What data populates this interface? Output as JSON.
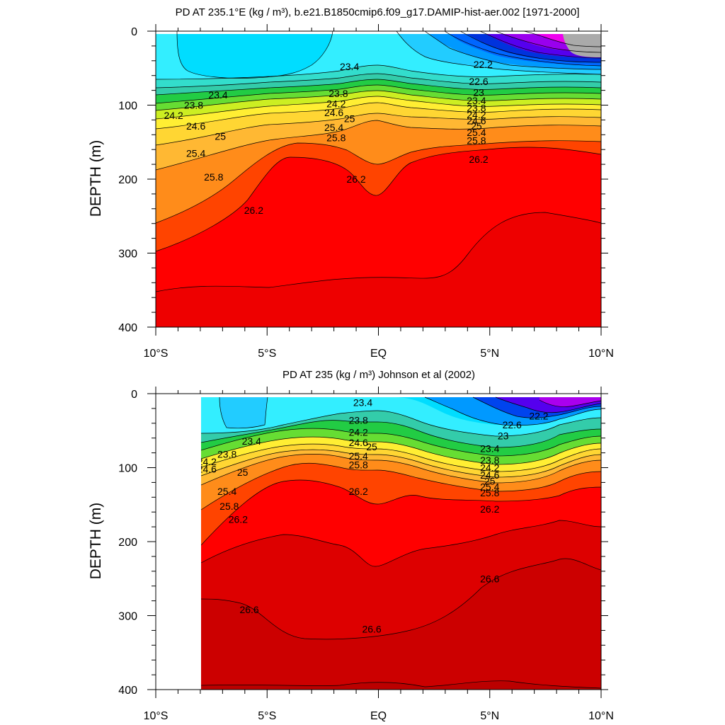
{
  "chart_data": [
    {
      "type": "contour",
      "title": "PD AT 235.1°E (kg / m³), b.e21.B1850cmip6.f09_g17.DAMIP-hist-aer.002 [1971-2000]",
      "ylabel": "DEPTH (m)",
      "xlabel": "",
      "x_ticks": [
        "10°S",
        "5°S",
        "EQ",
        "5°N",
        "10°N"
      ],
      "x_range": [
        -10,
        10
      ],
      "ylim": [
        0,
        400
      ],
      "y_ticks": [
        0,
        100,
        200,
        300,
        400
      ],
      "y_reversed": true,
      "grid": false,
      "contour_interval": 0.2,
      "isopycnals": [
        {
          "level": 23.4,
          "x": [
            -10,
            -6,
            -4,
            -2,
            -1,
            0,
            1,
            3,
            5
          ],
          "depth": [
            55,
            60,
            75,
            60,
            25,
            20,
            30,
            60,
            70
          ]
        },
        {
          "level": 23.8,
          "x": [
            -10,
            -6,
            -3,
            -1,
            0,
            2,
            5,
            8,
            10
          ],
          "depth": [
            84,
            90,
            95,
            95,
            80,
            90,
            100,
            92,
            90
          ]
        },
        {
          "level": 24.2,
          "x": [
            -10,
            -6,
            -3,
            -1,
            0,
            2,
            5,
            8,
            10
          ],
          "depth": [
            98,
            103,
            108,
            105,
            90,
            100,
            107,
            100,
            98
          ]
        },
        {
          "level": 24.6,
          "x": [
            -10,
            -6,
            -3,
            -1,
            0,
            2,
            5,
            8,
            10
          ],
          "depth": [
            110,
            116,
            118,
            114,
            98,
            108,
            113,
            108,
            106
          ]
        },
        {
          "level": 25.0,
          "x": [
            -10,
            -6,
            -3,
            -1,
            0,
            2,
            5,
            8,
            10
          ],
          "depth": [
            125,
            132,
            130,
            122,
            110,
            120,
            122,
            118,
            115
          ]
        },
        {
          "level": 25.4,
          "x": [
            -10,
            -6,
            -3,
            -1,
            0,
            2,
            5,
            8,
            10
          ],
          "depth": [
            155,
            158,
            150,
            140,
            125,
            135,
            137,
            132,
            128
          ]
        },
        {
          "level": 25.8,
          "x": [
            -10,
            -6,
            -3,
            -1,
            0,
            2,
            5,
            8,
            10
          ],
          "depth": [
            200,
            190,
            172,
            150,
            145,
            150,
            150,
            145,
            140
          ]
        },
        {
          "level": 26.2,
          "x": [
            -10,
            -6,
            -4,
            -2,
            -1,
            0,
            2,
            5,
            8,
            10
          ],
          "depth": [
            298,
            265,
            200,
            172,
            200,
            225,
            180,
            165,
            165,
            168
          ]
        }
      ],
      "contour_labels": [
        {
          "text": "23.4",
          "x": -7.2,
          "depth": 86
        },
        {
          "text": "23.4",
          "x": -1.3,
          "depth": 48
        },
        {
          "text": "23.8",
          "x": -8.3,
          "depth": 100
        },
        {
          "text": "23.8",
          "x": -1.8,
          "depth": 84
        },
        {
          "text": "24.2",
          "x": -9.2,
          "depth": 114
        },
        {
          "text": "24.2",
          "x": -1.9,
          "depth": 98
        },
        {
          "text": "24.6",
          "x": -8.2,
          "depth": 128
        },
        {
          "text": "24.6",
          "x": -2.0,
          "depth": 110
        },
        {
          "text": "25",
          "x": -7.1,
          "depth": 142
        },
        {
          "text": "25",
          "x": -1.3,
          "depth": 118
        },
        {
          "text": "25.4",
          "x": -8.2,
          "depth": 165
        },
        {
          "text": "25.4",
          "x": -2.0,
          "depth": 130
        },
        {
          "text": "25.8",
          "x": -7.4,
          "depth": 197
        },
        {
          "text": "25.8",
          "x": -1.9,
          "depth": 144
        },
        {
          "text": "26.2",
          "x": -5.6,
          "depth": 242
        },
        {
          "text": "26.2",
          "x": -1.0,
          "depth": 200
        },
        {
          "text": "26.2",
          "x": 4.5,
          "depth": 173
        },
        {
          "text": "22.2",
          "x": 4.7,
          "depth": 45
        },
        {
          "text": "22.6",
          "x": 4.5,
          "depth": 68
        },
        {
          "text": "23",
          "x": 4.5,
          "depth": 83
        },
        {
          "text": "23.4",
          "x": 4.4,
          "depth": 94
        },
        {
          "text": "23.8",
          "x": 4.4,
          "depth": 104
        },
        {
          "text": "24.2",
          "x": 4.4,
          "depth": 113
        },
        {
          "text": "24.6",
          "x": 4.4,
          "depth": 121
        },
        {
          "text": "25",
          "x": 4.4,
          "depth": 128
        },
        {
          "text": "25.4",
          "x": 4.4,
          "depth": 137
        },
        {
          "text": "25.8",
          "x": 4.4,
          "depth": 148
        }
      ]
    },
    {
      "type": "contour",
      "title": "PD AT 235 (kg / m³) Johnson et al (2002)",
      "ylabel": "DEPTH (m)",
      "xlabel": "",
      "x_ticks": [
        "10°S",
        "5°S",
        "EQ",
        "5°N",
        "10°N"
      ],
      "x_range": [
        -10,
        10
      ],
      "data_x_range": [
        -8,
        10
      ],
      "ylim": [
        0,
        400
      ],
      "y_ticks": [
        0,
        100,
        200,
        300,
        400
      ],
      "y_reversed": true,
      "grid": false,
      "contour_interval": 0.2,
      "isopycnals": [
        {
          "level": 23.4,
          "x": [
            -8,
            -6,
            -4,
            -2,
            0,
            2,
            4,
            5
          ],
          "depth": [
            70,
            60,
            40,
            20,
            15,
            30,
            55,
            70
          ]
        },
        {
          "level": 23.8,
          "x": [
            -8,
            -6,
            -4,
            -2,
            0,
            2,
            4,
            6,
            7.5,
            8
          ],
          "depth": [
            85,
            75,
            60,
            40,
            45,
            60,
            80,
            80,
            60,
            90
          ]
        },
        {
          "level": 24.2,
          "x": [
            -8,
            -6,
            -4,
            -2,
            0,
            2,
            4,
            6,
            7.5,
            8,
            10
          ],
          "depth": [
            95,
            85,
            70,
            55,
            65,
            80,
            95,
            95,
            80,
            95,
            85
          ]
        },
        {
          "level": 24.6,
          "x": [
            -8,
            -6,
            -4,
            -2,
            0,
            2,
            4,
            6,
            8,
            10
          ],
          "depth": [
            105,
            93,
            78,
            67,
            75,
            90,
            105,
            105,
            100,
            95
          ]
        },
        {
          "level": 25.0,
          "x": [
            -8,
            -6,
            -4,
            -2,
            0,
            2,
            4,
            6,
            8,
            10
          ],
          "depth": [
            115,
            102,
            85,
            75,
            82,
            98,
            112,
            112,
            105,
            100
          ]
        },
        {
          "level": 25.4,
          "x": [
            -8,
            -6,
            -4,
            -2,
            0,
            2,
            4,
            6,
            8,
            10
          ],
          "depth": [
            140,
            118,
            95,
            83,
            90,
            106,
            120,
            120,
            110,
            105
          ]
        },
        {
          "level": 25.8,
          "x": [
            -8,
            -6,
            -4,
            -2,
            0,
            2,
            4,
            6,
            8,
            10
          ],
          "depth": [
            160,
            130,
            105,
            95,
            100,
            115,
            128,
            126,
            115,
            110
          ]
        },
        {
          "level": 26.2,
          "x": [
            -8,
            -6,
            -4,
            -2,
            0,
            2,
            4,
            6,
            8,
            10
          ],
          "depth": [
            205,
            170,
            120,
            112,
            150,
            140,
            150,
            150,
            130,
            130
          ]
        },
        {
          "level": 26.6,
          "x": [
            -8,
            -6,
            -4,
            -2,
            0,
            2,
            4,
            6,
            8,
            10
          ],
          "depth": [
            228,
            195,
            190,
            195,
            225,
            210,
            195,
            180,
            160,
            175
          ]
        },
        {
          "level": 26.6,
          "x": [
            -8,
            -6,
            -4,
            -2,
            0,
            2,
            4,
            6,
            8,
            10
          ],
          "depth": [
            278,
            290,
            330,
            330,
            325,
            315,
            280,
            240,
            220,
            235
          ]
        }
      ],
      "contour_labels": [
        {
          "text": "23.4",
          "x": -5.7,
          "depth": 64
        },
        {
          "text": "23.4",
          "x": -0.7,
          "depth": 12
        },
        {
          "text": "23.8",
          "x": -6.8,
          "depth": 82
        },
        {
          "text": "23.8",
          "x": -0.9,
          "depth": 36
        },
        {
          "text": "24.2",
          "x": -7.7,
          "depth": 92
        },
        {
          "text": "24.2",
          "x": -0.9,
          "depth": 52
        },
        {
          "text": "24.6",
          "x": -7.7,
          "depth": 102
        },
        {
          "text": "24.6",
          "x": -0.9,
          "depth": 66
        },
        {
          "text": "25",
          "x": -6.1,
          "depth": 106
        },
        {
          "text": "25",
          "x": -0.3,
          "depth": 72
        },
        {
          "text": "25.4",
          "x": -6.8,
          "depth": 132
        },
        {
          "text": "25.4",
          "x": -0.9,
          "depth": 84
        },
        {
          "text": "25.8",
          "x": -6.7,
          "depth": 152
        },
        {
          "text": "25.8",
          "x": -0.9,
          "depth": 96
        },
        {
          "text": "26.2",
          "x": -6.3,
          "depth": 170
        },
        {
          "text": "26.2",
          "x": -0.9,
          "depth": 132
        },
        {
          "text": "26.2",
          "x": 5.0,
          "depth": 156
        },
        {
          "text": "26.6",
          "x": -5.8,
          "depth": 292
        },
        {
          "text": "26.6",
          "x": -0.3,
          "depth": 318
        },
        {
          "text": "26.6",
          "x": 5.0,
          "depth": 250
        },
        {
          "text": "22.2",
          "x": 7.2,
          "depth": 30
        },
        {
          "text": "22.6",
          "x": 6.0,
          "depth": 42
        },
        {
          "text": "23",
          "x": 5.6,
          "depth": 57
        },
        {
          "text": "23.4",
          "x": 5.0,
          "depth": 74
        },
        {
          "text": "23.8",
          "x": 5.0,
          "depth": 90
        },
        {
          "text": "24.2",
          "x": 5.0,
          "depth": 100
        },
        {
          "text": "24.6",
          "x": 5.0,
          "depth": 110
        },
        {
          "text": "25",
          "x": 5.0,
          "depth": 118
        },
        {
          "text": "25.4",
          "x": 5.0,
          "depth": 126
        },
        {
          "text": "25.8",
          "x": 5.0,
          "depth": 134
        }
      ]
    }
  ],
  "colors": {
    "red_26_2": "#ff0000",
    "darkred_26_6": "#cc0000",
    "orangered_25_8": "#ff4400",
    "orange_25_4": "#ff8c1a",
    "lightorange_25": "#ffb833",
    "yellow_24_6": "#ffee33",
    "green_24_2": "#33dd33",
    "teal_23_8": "#33ccaa",
    "cyan_23_4": "#33eeff",
    "skyblue": "#00aaff",
    "blue": "#0055ff",
    "purple": "#7700ee",
    "magenta": "#ee00ee",
    "gray": "#aaaaaa"
  }
}
